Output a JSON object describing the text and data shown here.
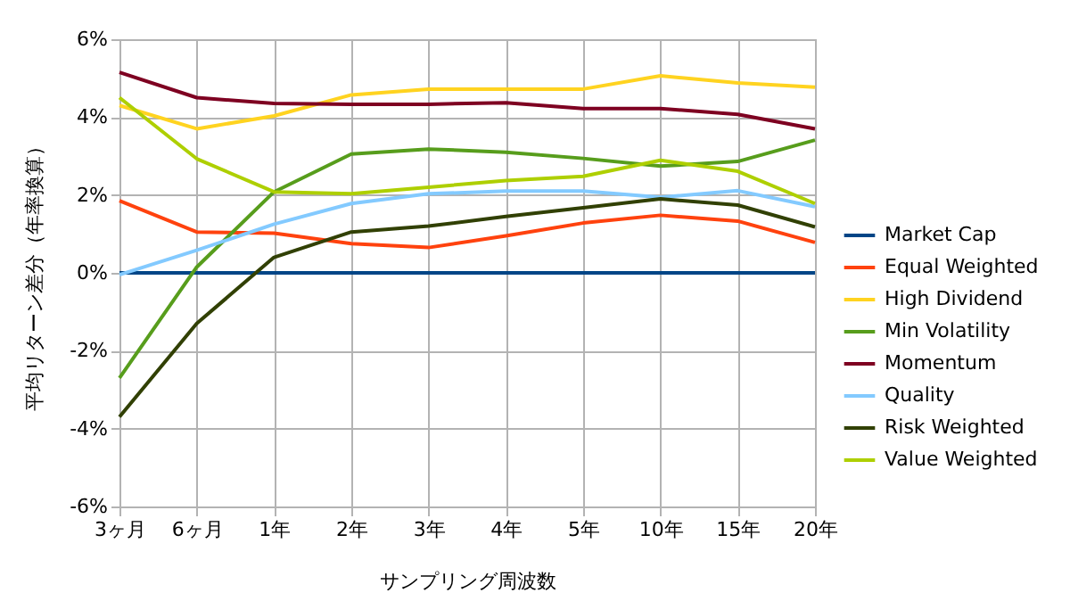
{
  "chart_data": {
    "type": "line",
    "xlabel": "サンプリング周波数",
    "ylabel": "平均リターン差分（年率換算）",
    "categories": [
      "3ヶ月",
      "6ヶ月",
      "1年",
      "2年",
      "3年",
      "4年",
      "5年",
      "10年",
      "15年",
      "20年"
    ],
    "series": [
      {
        "name": "Market Cap",
        "color": "#004586",
        "values": [
          0,
          0,
          0,
          0,
          0,
          0,
          0,
          0,
          0,
          0
        ]
      },
      {
        "name": "Equal Weighted",
        "color": "#ff420e",
        "values": [
          1.85,
          1.05,
          1.02,
          0.75,
          0.65,
          0.95,
          1.28,
          1.48,
          1.33,
          0.78
        ]
      },
      {
        "name": "High Dividend",
        "color": "#ffd320",
        "values": [
          4.3,
          3.7,
          4.03,
          4.57,
          4.72,
          4.72,
          4.72,
          5.06,
          4.88,
          4.77
        ]
      },
      {
        "name": "Min Volatility",
        "color": "#579d1c",
        "values": [
          -2.7,
          0.15,
          2.08,
          3.05,
          3.18,
          3.1,
          2.94,
          2.74,
          2.86,
          3.41
        ]
      },
      {
        "name": "Momentum",
        "color": "#7e0021",
        "values": [
          5.15,
          4.5,
          4.35,
          4.33,
          4.33,
          4.37,
          4.22,
          4.22,
          4.07,
          3.7
        ]
      },
      {
        "name": "Quality",
        "color": "#83caff",
        "values": [
          -0.05,
          0.58,
          1.25,
          1.78,
          2.03,
          2.1,
          2.1,
          1.94,
          2.11,
          1.7
        ]
      },
      {
        "name": "Risk Weighted",
        "color": "#314004",
        "values": [
          -3.7,
          -1.3,
          0.4,
          1.05,
          1.2,
          1.45,
          1.67,
          1.9,
          1.74,
          1.18
        ]
      },
      {
        "name": "Value Weighted",
        "color": "#aecf00",
        "values": [
          4.5,
          2.93,
          2.08,
          2.03,
          2.2,
          2.37,
          2.48,
          2.89,
          2.61,
          1.78
        ]
      }
    ],
    "ylim": [
      -6,
      6
    ],
    "yticks": [
      {
        "value": -6,
        "label": "-6%"
      },
      {
        "value": -4,
        "label": "-4%"
      },
      {
        "value": -2,
        "label": "-2%"
      },
      {
        "value": 0,
        "label": "0%"
      },
      {
        "value": 2,
        "label": "2%"
      },
      {
        "value": 4,
        "label": "4%"
      },
      {
        "value": 6,
        "label": "6%"
      }
    ],
    "grid": true,
    "legend": "right",
    "line_style": "solid",
    "marker": "none"
  }
}
